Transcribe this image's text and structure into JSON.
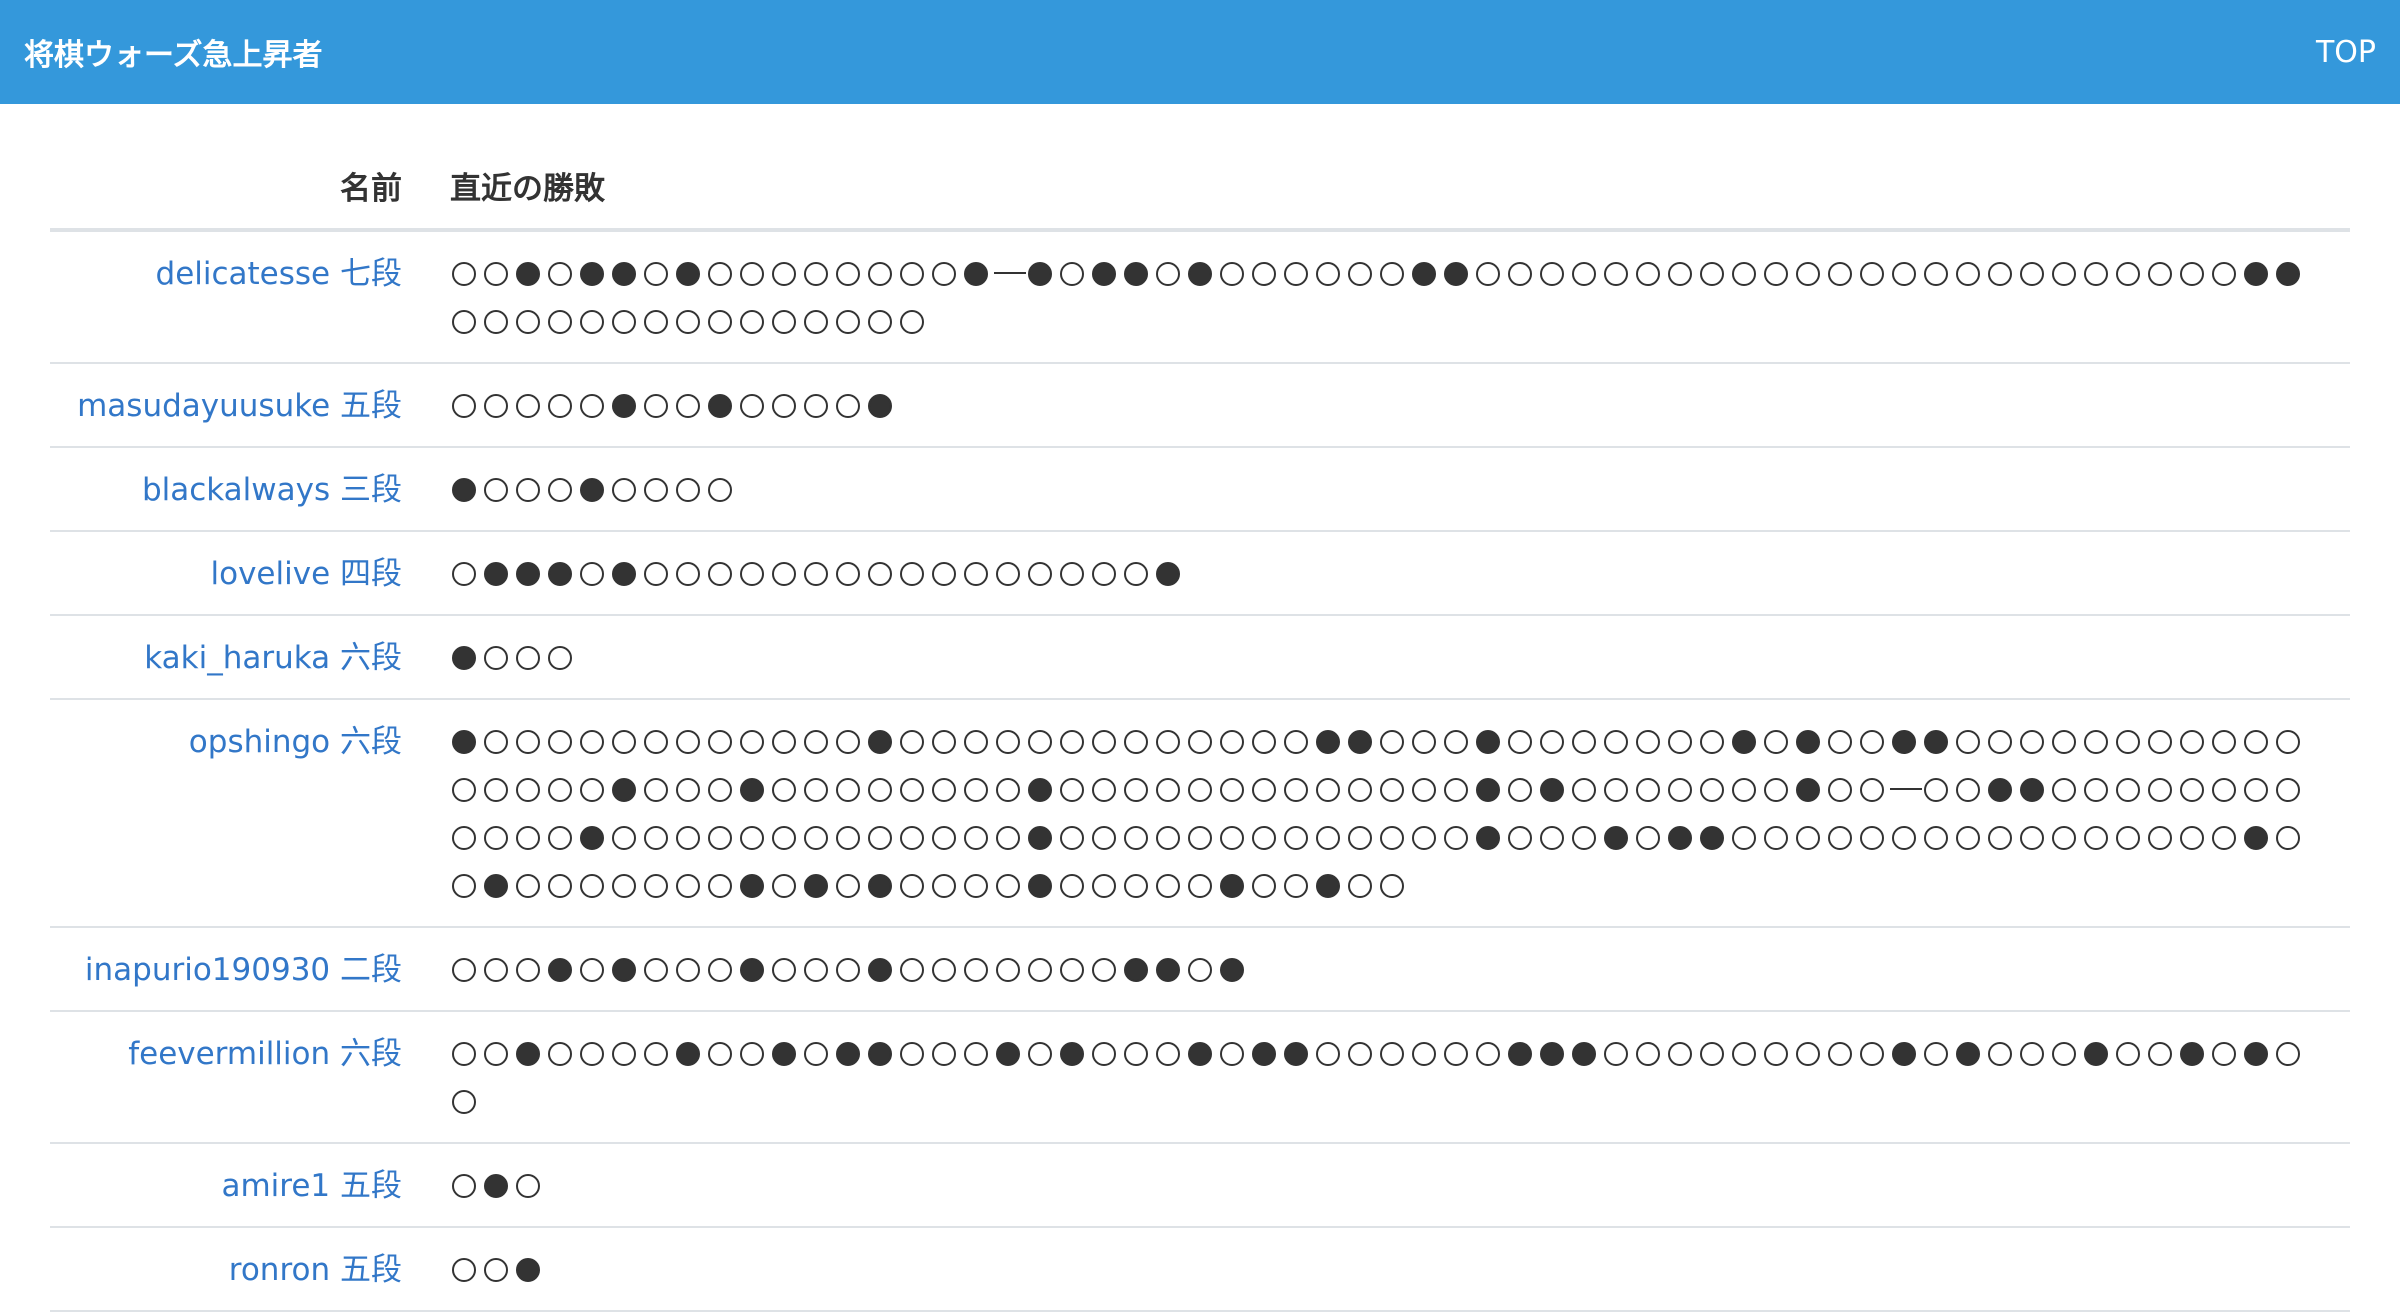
{
  "header": {
    "brand": "将棋ウォーズ急上昇者",
    "nav_top": "TOP"
  },
  "table": {
    "col_name": "名前",
    "col_results": "直近の勝敗",
    "rows": [
      {
        "name": "delicatesse 七段",
        "results": "○○●○●●○●○○○○○○○○●—●○●●○●○○○○○○●●○○○○○○○○○○○○○○○○○○○○○○○○●●○○○○○○○○○○○○○○○"
      },
      {
        "name": "masudayuusuke 五段",
        "results": "○○○○○●○○●○○○○●"
      },
      {
        "name": "blackalways 三段",
        "results": "●○○○●○○○○"
      },
      {
        "name": "lovelive 四段",
        "results": "○●●●○●○○○○○○○○○○○○○○○○●"
      },
      {
        "name": "kaki_haruka 六段",
        "results": "●○○○"
      },
      {
        "name": "opshingo 六段",
        "results": "●○○○○○○○○○○○○●○○○○○○○○○○○○○●●○○○●○○○○○○○●○●○○●●○○○○○○○○○○○○○○○○●○○○●○○○○○○○○●○○○○○○○○○○○○○●○●○○○○○○○●○○—○○●●○○○○○○○○○○○○●○○○○○○○○○○○○○●○○○○○○○○○○○○○●○○○●○●●○○○○○○○○○○○○○○○○●○○●○○○○○○○●○●○●○○○○●○○○○○●○○●○○"
      },
      {
        "name": "inapurio190930 二段",
        "results": "○○○●○●○○○●○○○●○○○○○○○●●○●"
      },
      {
        "name": "feevermillion 六段",
        "results": "○○●○○○○●○○●○●●○○○●○●○○○●○●●○○○○○○●●●○○○○○○○○○●○●○○○●○○●○●○○"
      },
      {
        "name": "amire1 五段",
        "results": "○●○"
      },
      {
        "name": "ronron 五段",
        "results": "○○●"
      }
    ]
  }
}
